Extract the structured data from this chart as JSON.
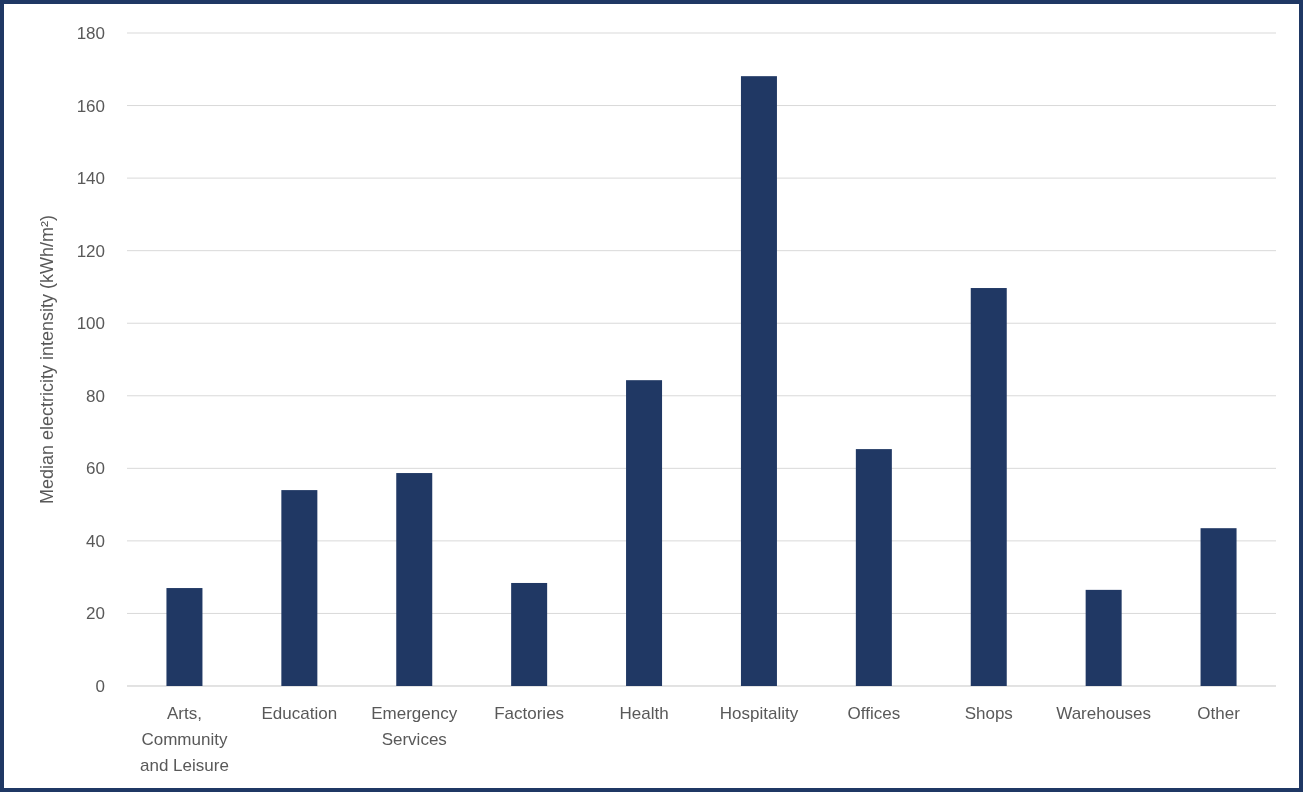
{
  "chart_data": {
    "type": "bar",
    "ylabel": "Median electricity intensity (kWh/m²)",
    "categories": [
      "Arts, Community and Leisure",
      "Education",
      "Emergency Services",
      "Factories",
      "Health",
      "Hospitality",
      "Offices",
      "Shops",
      "Warehouses",
      "Other"
    ],
    "values": [
      27,
      54,
      58.7,
      28.4,
      84.3,
      168.1,
      65.3,
      109.7,
      26.5,
      43.5
    ],
    "color": "#203864",
    "ylim": [
      0,
      180
    ],
    "yticks": [
      0,
      20,
      40,
      60,
      80,
      100,
      120,
      140,
      160,
      180
    ],
    "grid": "y"
  }
}
